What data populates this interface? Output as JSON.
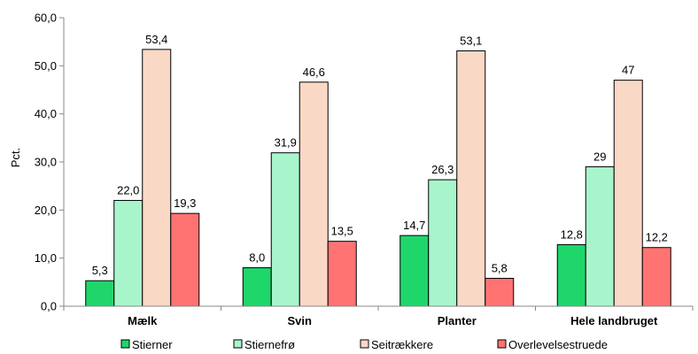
{
  "chart_data": {
    "type": "bar",
    "ylabel": "Pct.",
    "xlabel": "",
    "title": "",
    "ylim": [
      0,
      60
    ],
    "yticks": [
      0,
      10,
      20,
      30,
      40,
      50,
      60
    ],
    "ytick_labels": [
      "0,0",
      "10,0",
      "20,0",
      "30,0",
      "40,0",
      "50,0",
      "60,0"
    ],
    "categories": [
      "Mælk",
      "Svin",
      "Planter",
      "Hele landbruget"
    ],
    "series": [
      {
        "name": "Stierner",
        "color": "#1fd66b",
        "values": [
          5.3,
          8.0,
          14.7,
          12.8
        ],
        "labels": [
          "5,3",
          "8,0",
          "14,7",
          "12,8"
        ]
      },
      {
        "name": "Stiernefrø",
        "color": "#a8f5cc",
        "values": [
          22.0,
          31.9,
          26.3,
          29
        ],
        "labels": [
          "22,0",
          "31,9",
          "26,3",
          "29"
        ]
      },
      {
        "name": "Seitrækkere",
        "color": "#f9d8c6",
        "values": [
          53.4,
          46.6,
          53.1,
          47
        ],
        "labels": [
          "53,4",
          "46,6",
          "53,1",
          "47"
        ]
      },
      {
        "name": "Overlevelsestruede",
        "color": "#ff7373",
        "values": [
          19.3,
          13.5,
          5.8,
          12.2
        ],
        "labels": [
          "19,3",
          "13,5",
          "5,8",
          "12,2"
        ]
      }
    ],
    "grid": false,
    "legend": "bottom"
  }
}
